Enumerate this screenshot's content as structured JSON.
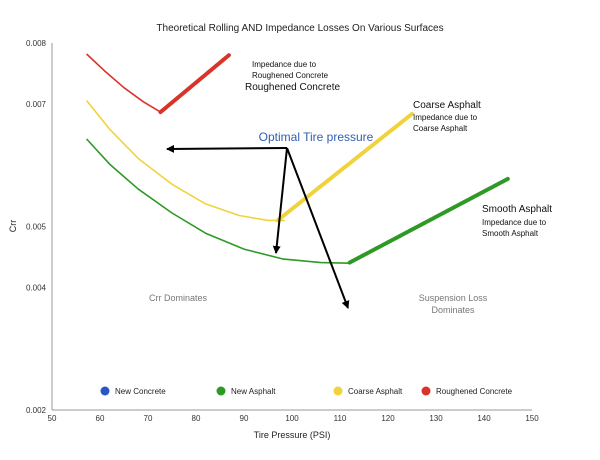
{
  "chart_data": {
    "type": "line",
    "title": "Theoretical Rolling AND Impedance Losses On Various Surfaces",
    "xlabel": "Tire Pressure (PSI)",
    "ylabel": "Crr",
    "xlim": [
      50,
      150
    ],
    "ylim": [
      0.002,
      0.008
    ],
    "xticks": [
      50,
      60,
      70,
      80,
      90,
      100,
      110,
      120,
      130,
      140,
      150
    ],
    "yticks": [
      0.002,
      0.004,
      0.005,
      0.007,
      0.008
    ],
    "ytick_labels": [
      "0.002",
      "0.004",
      "0.005",
      "0.007",
      "0.008"
    ],
    "grid": false,
    "legend_position": "bottom",
    "legend": [
      {
        "name": "New Concrete",
        "color": "#2a55c7"
      },
      {
        "name": "New Asphalt",
        "color": "#2e9a25"
      },
      {
        "name": "Coarse Asphalt",
        "color": "#f0d33c"
      },
      {
        "name": "Roughened Concrete",
        "color": "#d8342a"
      }
    ],
    "series": [
      {
        "name": "Roughened Concrete",
        "color": "#d8342a",
        "curve": [
          [
            57.2,
            0.00782
          ],
          [
            61,
            0.00754
          ],
          [
            65,
            0.00727
          ],
          [
            69,
            0.00704
          ],
          [
            72.6,
            0.00687
          ]
        ],
        "impedance": [
          [
            72.6,
            0.00687
          ],
          [
            87,
            0.00781
          ]
        ]
      },
      {
        "name": "Coarse Asphalt",
        "color": "#f0d33c",
        "curve": [
          [
            57.2,
            0.00706
          ],
          [
            62,
            0.00659
          ],
          [
            68,
            0.00611
          ],
          [
            75,
            0.00569
          ],
          [
            82,
            0.00537
          ],
          [
            89,
            0.00518
          ],
          [
            95,
            0.0051
          ],
          [
            98.5,
            0.0051
          ]
        ],
        "impedance": [
          [
            97,
            0.0051
          ],
          [
            125,
            0.00684
          ]
        ]
      },
      {
        "name": "New Asphalt",
        "color": "#2e9a25",
        "curve": [
          [
            57.2,
            0.00643
          ],
          [
            62,
            0.00602
          ],
          [
            68,
            0.00561
          ],
          [
            75,
            0.00522
          ],
          [
            82,
            0.00489
          ],
          [
            90,
            0.00463
          ],
          [
            98,
            0.00447
          ],
          [
            106,
            0.00441
          ],
          [
            112,
            0.0044
          ]
        ],
        "impedance": [
          [
            112,
            0.00441
          ],
          [
            145,
            0.00578
          ]
        ]
      }
    ],
    "annotations": {
      "optimal": "Optimal Tire pressure",
      "roughened_1": "Impedance due to",
      "roughened_2": "Roughened Concrete",
      "roughened_3": "Roughened Concrete",
      "coarse_head": "Coarse Asphalt",
      "coarse_1": "Impedance due to",
      "coarse_2": "Coarse Asphalt",
      "smooth_head": "Smooth Asphalt",
      "smooth_1": "Impedance due to",
      "smooth_2": "Smooth Asphalt",
      "crr_dominates": "Crr Dominates",
      "suspension_1": "Suspension Loss",
      "suspension_2": "Dominates"
    }
  }
}
